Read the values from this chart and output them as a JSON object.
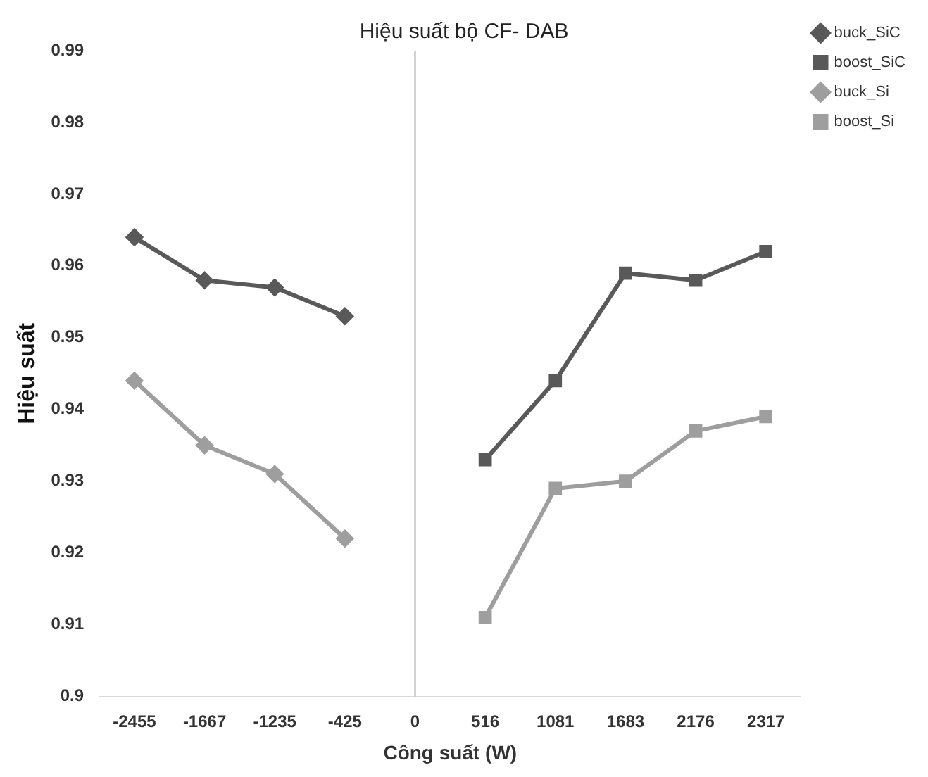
{
  "chart_data": {
    "type": "line",
    "title": "Hiệu suất bộ CF- DAB",
    "xlabel": "Công suất (W)",
    "ylabel": "Hiệu suất",
    "categories": [
      "-2455",
      "-1667",
      "-1235",
      "-425",
      "0",
      "516",
      "1081",
      "1683",
      "2176",
      "2317"
    ],
    "series": [
      {
        "name": "buck_SiC",
        "color": "#595959",
        "marker": "diamond",
        "values": [
          0.964,
          0.958,
          0.957,
          0.953,
          null,
          null,
          null,
          null,
          null,
          null
        ]
      },
      {
        "name": "boost_SiC",
        "color": "#595959",
        "marker": "square",
        "values": [
          null,
          null,
          null,
          null,
          null,
          0.933,
          0.944,
          0.959,
          0.958,
          0.962
        ]
      },
      {
        "name": "buck_Si",
        "color": "#9e9e9e",
        "marker": "diamond",
        "values": [
          0.944,
          0.935,
          0.931,
          0.922,
          null,
          null,
          null,
          null,
          null,
          null
        ]
      },
      {
        "name": "boost_Si",
        "color": "#9e9e9e",
        "marker": "square",
        "values": [
          null,
          null,
          null,
          null,
          null,
          0.911,
          0.929,
          0.93,
          0.937,
          0.939
        ]
      }
    ],
    "ylim": [
      0.9,
      0.99
    ],
    "yticks": [
      0.9,
      0.91,
      0.92,
      0.93,
      0.94,
      0.95,
      0.96,
      0.97,
      0.98,
      0.99
    ],
    "ref_lines": [
      {
        "axis": "x",
        "value": "0",
        "color": "#a6a6a6"
      }
    ],
    "grid": false,
    "legend": "top right",
    "line_style": "solid"
  }
}
